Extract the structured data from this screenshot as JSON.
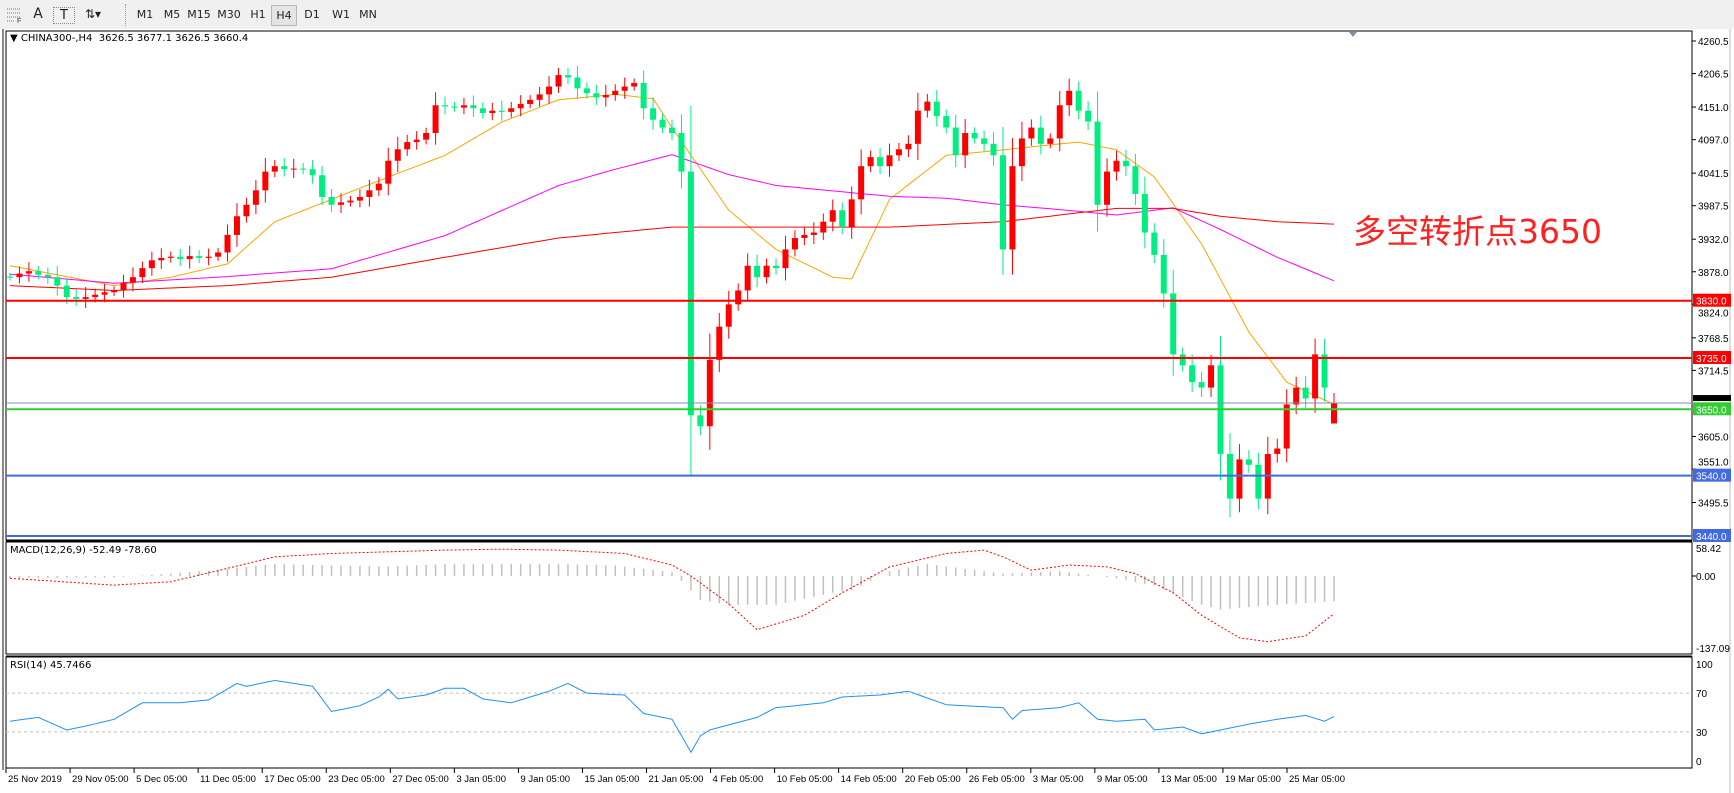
{
  "toolbar": {
    "tools": [
      {
        "name": "grid-font-icon",
        "label": "F"
      },
      {
        "name": "text-icon",
        "label": "A"
      },
      {
        "name": "text-label-icon",
        "label": "T"
      },
      {
        "name": "arrows-dropdown-icon",
        "label": "⇅▾"
      }
    ],
    "timeframes": [
      "M1",
      "M5",
      "M15",
      "M30",
      "H1",
      "H4",
      "D1",
      "W1",
      "MN"
    ],
    "active_timeframe": "H4"
  },
  "chart": {
    "symbol_label": "CHINA300-,H4",
    "ohlc_text": "3626.5 3677.1 3626.5 3660.4",
    "last_bar": {
      "open": 3626.5,
      "high": 3677.1,
      "low": 3626.5,
      "close": 3660.4
    },
    "annotation": "多空转折点3650",
    "colors": {
      "up": "#ff0000",
      "down": "#00ee80",
      "ma_fast": "#ffa500",
      "ma_mid": "#ff00ff",
      "ma_slow": "#ff0000",
      "rsi": "#1e90ff",
      "macd_hist": "#c0c0c0",
      "macd_signal": "#ff0000"
    }
  },
  "chart_data": [
    {
      "type": "candlestick",
      "ylim": [
        3440.0,
        4260.5
      ],
      "price_ticks": [
        "4260.5",
        "4206.5",
        "4151.0",
        "4097.0",
        "4041.5",
        "3987.5",
        "3932.0",
        "3878.0",
        "3824.0",
        "3768.5",
        "3714.5",
        "3605.0",
        "3551.0",
        "3495.5"
      ],
      "x_tick_labels": [
        "25 Nov 2019",
        "29 Nov 05:00",
        "5 Dec 05:00",
        "11 Dec 05:00",
        "17 Dec 05:00",
        "23 Dec 05:00",
        "27 Dec 05:00",
        "3 Jan 05:00",
        "9 Jan 05:00",
        "15 Jan 05:00",
        "21 Jan 05:00",
        "4 Feb 05:00",
        "10 Feb 05:00",
        "14 Feb 05:00",
        "20 Feb 05:00",
        "26 Feb 05:00",
        "3 Mar 05:00",
        "9 Mar 05:00",
        "13 Mar 05:00",
        "19 Mar 05:00",
        "25 Mar 05:00"
      ],
      "first_open": 3870,
      "closes": [
        3869,
        3875,
        3879,
        3873,
        3869,
        3855,
        3836,
        3833,
        3836,
        3840,
        3844,
        3847,
        3860,
        3869,
        3884,
        3897,
        3901,
        3903,
        3899,
        3904,
        3901,
        3903,
        3910,
        3939,
        3970,
        3989,
        4013,
        4044,
        4053,
        4048,
        4049,
        4048,
        4038,
        4002,
        3989,
        3993,
        3996,
        4002,
        4013,
        4024,
        4062,
        4081,
        4093,
        4097,
        4108,
        4154,
        4152,
        4150,
        4154,
        4149,
        4141,
        4145,
        4143,
        4149,
        4156,
        4163,
        4172,
        4185,
        4204,
        4200,
        4182,
        4174,
        4167,
        4171,
        4178,
        4185,
        4191,
        4149,
        4130,
        4117,
        4108,
        4044,
        3640,
        3622,
        3732,
        3787,
        3824,
        3847,
        3888,
        3869,
        3888,
        3884,
        3915,
        3934,
        3939,
        3943,
        3961,
        3980,
        3952,
        3998,
        4053,
        4068,
        4053,
        4071,
        4081,
        4090,
        4145,
        4160,
        4136,
        4117,
        4071,
        4108,
        4099,
        4090,
        4071,
        3915,
        4053,
        4099,
        4117,
        4090,
        4099,
        4154,
        4178,
        4145,
        4127,
        3989,
        4044,
        4062,
        4053,
        4007,
        3943,
        3906,
        3842,
        3741,
        3723,
        3695,
        3686,
        3723,
        3576,
        3502,
        3567,
        3558,
        3502,
        3576,
        3585,
        3658,
        3686,
        3668,
        3741,
        3686,
        3660.4
      ],
      "moving_averages": [
        {
          "color_key": "ma_fast",
          "points": [
            [
              0,
              3888
            ],
            [
              11,
              3855
            ],
            [
              17,
              3869
            ],
            [
              23,
              3891
            ],
            [
              28,
              3961
            ],
            [
              34,
              3998
            ],
            [
              40,
              4035
            ],
            [
              46,
              4071
            ],
            [
              52,
              4126
            ],
            [
              58,
              4163
            ],
            [
              64,
              4172
            ],
            [
              68,
              4165
            ],
            [
              70,
              4117
            ],
            [
              72,
              4071
            ],
            [
              76,
              3980
            ],
            [
              81,
              3915
            ],
            [
              87,
              3869
            ],
            [
              89,
              3866
            ],
            [
              93,
              3998
            ],
            [
              99,
              4071
            ],
            [
              105,
              4080
            ],
            [
              111,
              4090
            ],
            [
              113,
              4093
            ],
            [
              117,
              4080
            ],
            [
              121,
              4035
            ],
            [
              126,
              3924
            ],
            [
              131,
              3778
            ],
            [
              135,
              3695
            ],
            [
              140,
              3658
            ]
          ]
        },
        {
          "color_key": "ma_mid",
          "points": [
            [
              0,
              3874
            ],
            [
              11,
              3859
            ],
            [
              23,
              3870
            ],
            [
              34,
              3883
            ],
            [
              46,
              3938
            ],
            [
              58,
              4021
            ],
            [
              64,
              4048
            ],
            [
              70,
              4072
            ],
            [
              76,
              4039
            ],
            [
              81,
              4021
            ],
            [
              87,
              4012
            ],
            [
              93,
              4003
            ],
            [
              99,
              4000
            ],
            [
              105,
              3989
            ],
            [
              111,
              3981
            ],
            [
              117,
              3972
            ],
            [
              123,
              3984
            ],
            [
              128,
              3948
            ],
            [
              134,
              3902
            ],
            [
              140,
              3863
            ]
          ]
        },
        {
          "color_key": "ma_slow",
          "points": [
            [
              0,
              3855
            ],
            [
              11,
              3847
            ],
            [
              23,
              3855
            ],
            [
              34,
              3869
            ],
            [
              46,
              3902
            ],
            [
              58,
              3934
            ],
            [
              70,
              3952
            ],
            [
              81,
              3952
            ],
            [
              93,
              3952
            ],
            [
              105,
              3961
            ],
            [
              117,
              3983
            ],
            [
              123,
              3983
            ],
            [
              128,
              3970
            ],
            [
              134,
              3961
            ],
            [
              140,
              3957
            ]
          ]
        }
      ],
      "horizontal_lines": [
        {
          "price": 3830.0,
          "label": "3830.0",
          "color": "#ff0000"
        },
        {
          "price": 3735.0,
          "label": "3735.0",
          "color": "#ff0000"
        },
        {
          "price": 3650.0,
          "label": "3650.0",
          "color": "#33cc33"
        },
        {
          "price": 3540.0,
          "label": "3540.0",
          "color": "#4169e1"
        },
        {
          "price": 3440.0,
          "label": "3440.0",
          "color": "#4169e1"
        }
      ],
      "bid_line": {
        "price": 3660.4,
        "label": "3660.4",
        "color": "#8090a0"
      }
    },
    {
      "type": "bar",
      "title": "MACD(12,26,9) -52.49 -78.60",
      "ylim": [
        -137.09,
        58.42
      ],
      "ticks": [
        "58.42",
        "0.00",
        "-137.09"
      ],
      "histogram_points": [
        [
          0,
          -5
        ],
        [
          11,
          -3
        ],
        [
          17,
          5
        ],
        [
          23,
          15
        ],
        [
          28,
          25
        ],
        [
          34,
          22
        ],
        [
          40,
          20
        ],
        [
          46,
          25
        ],
        [
          52,
          25
        ],
        [
          58,
          25
        ],
        [
          64,
          22
        ],
        [
          70,
          8
        ],
        [
          71,
          -10
        ],
        [
          73,
          -50
        ],
        [
          76,
          -60
        ],
        [
          81,
          -60
        ],
        [
          87,
          -35
        ],
        [
          89,
          -30
        ],
        [
          93,
          10
        ],
        [
          97,
          25
        ],
        [
          99,
          20
        ],
        [
          105,
          5
        ],
        [
          111,
          10
        ],
        [
          117,
          -5
        ],
        [
          121,
          -20
        ],
        [
          126,
          -60
        ],
        [
          128,
          -70
        ],
        [
          134,
          -60
        ],
        [
          140,
          -52.49
        ]
      ],
      "signal_points": [
        [
          0,
          -5
        ],
        [
          11,
          -19
        ],
        [
          17,
          -12
        ],
        [
          23,
          16
        ],
        [
          28,
          40
        ],
        [
          34,
          47
        ],
        [
          46,
          54
        ],
        [
          52,
          56
        ],
        [
          58,
          54
        ],
        [
          65,
          47
        ],
        [
          70,
          23
        ],
        [
          72,
          0
        ],
        [
          76,
          -58
        ],
        [
          79,
          -112
        ],
        [
          84,
          -82
        ],
        [
          88,
          -35
        ],
        [
          93,
          19
        ],
        [
          99,
          47
        ],
        [
          103,
          54
        ],
        [
          105,
          40
        ],
        [
          108,
          12
        ],
        [
          112,
          23
        ],
        [
          116,
          19
        ],
        [
          119,
          5
        ],
        [
          123,
          -35
        ],
        [
          126,
          -82
        ],
        [
          130,
          -129
        ],
        [
          133,
          -137
        ],
        [
          137,
          -125
        ],
        [
          140,
          -78.6
        ]
      ]
    },
    {
      "type": "line",
      "title": "RSI(14) 45.7466",
      "ylim": [
        0,
        100
      ],
      "ticks": [
        "100",
        "70",
        "30",
        "0"
      ],
      "levels": [
        70,
        30
      ],
      "points": [
        [
          0,
          41
        ],
        [
          3,
          45
        ],
        [
          6,
          32
        ],
        [
          8,
          36
        ],
        [
          11,
          43
        ],
        [
          14,
          60
        ],
        [
          18,
          60
        ],
        [
          21,
          63
        ],
        [
          24,
          80
        ],
        [
          25,
          77
        ],
        [
          28,
          83
        ],
        [
          32,
          77
        ],
        [
          34,
          51
        ],
        [
          37,
          57
        ],
        [
          39,
          66
        ],
        [
          40,
          74
        ],
        [
          41,
          64
        ],
        [
          44,
          68
        ],
        [
          46,
          75
        ],
        [
          48,
          75
        ],
        [
          50,
          64
        ],
        [
          53,
          60
        ],
        [
          57,
          72
        ],
        [
          59,
          80
        ],
        [
          61,
          70
        ],
        [
          65,
          68
        ],
        [
          67,
          49
        ],
        [
          70,
          43
        ],
        [
          72,
          9
        ],
        [
          73,
          26
        ],
        [
          74,
          32
        ],
        [
          79,
          45
        ],
        [
          81,
          55
        ],
        [
          86,
          60
        ],
        [
          88,
          66
        ],
        [
          92,
          68
        ],
        [
          95,
          72
        ],
        [
          99,
          58
        ],
        [
          101,
          57
        ],
        [
          105,
          55
        ],
        [
          106,
          43
        ],
        [
          107,
          52
        ],
        [
          111,
          55
        ],
        [
          113,
          60
        ],
        [
          115,
          43
        ],
        [
          117,
          41
        ],
        [
          120,
          43
        ],
        [
          121,
          32
        ],
        [
          124,
          35
        ],
        [
          126,
          28
        ],
        [
          128,
          32
        ],
        [
          131,
          38
        ],
        [
          134,
          43
        ],
        [
          137,
          47
        ],
        [
          139,
          41
        ],
        [
          140,
          45.7466
        ]
      ]
    }
  ]
}
